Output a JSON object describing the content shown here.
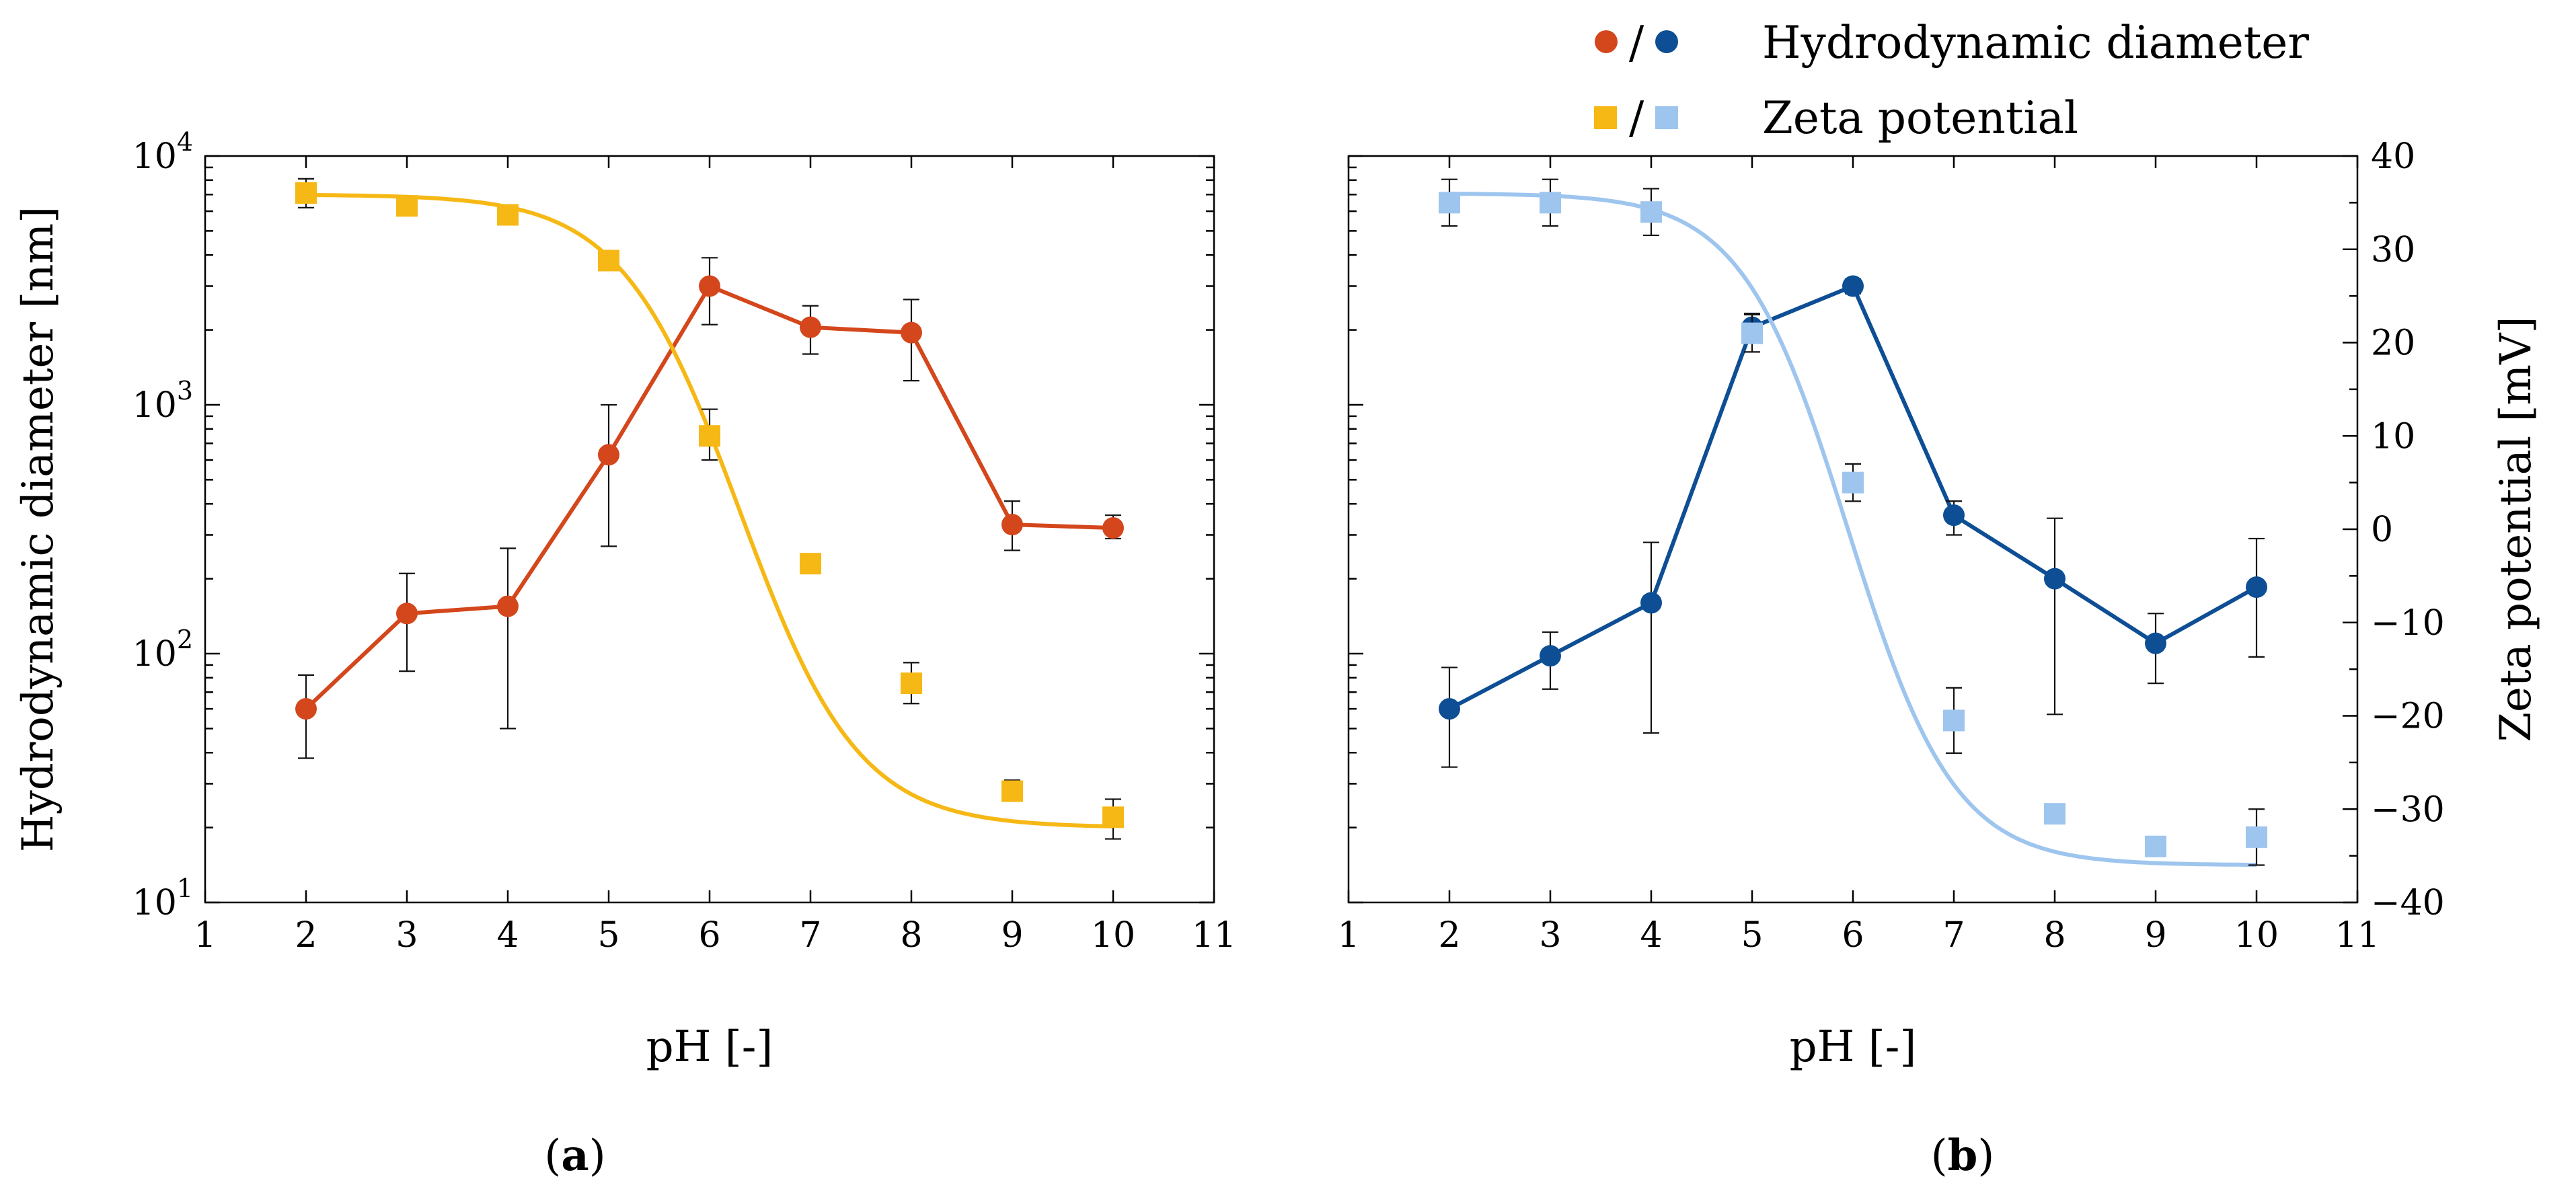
{
  "legend": {
    "separator": "/",
    "diameter_label": "Hydrodynamic diameter",
    "zeta_label": "Zeta potential"
  },
  "chart_data": [
    {
      "type": "line",
      "panel_label": "a",
      "title": "",
      "xlabel": "pH [-]",
      "ylabel": "Hydrodynamic diameter [nm]",
      "yscale": "log",
      "xlim": [
        1,
        11
      ],
      "ylim": [
        10,
        10000
      ],
      "x_ticks": [
        "1",
        "2",
        "3",
        "4",
        "5",
        "6",
        "7",
        "8",
        "9",
        "10",
        "11"
      ],
      "y_ticks": [
        {
          "base": "10",
          "exp": "1"
        },
        {
          "base": "10",
          "exp": "2"
        },
        {
          "base": "10",
          "exp": "3"
        },
        {
          "base": "10",
          "exp": "4"
        }
      ],
      "series": [
        {
          "name": "Hydrodynamic diameter",
          "kind": "diameter",
          "color": "#d4461b",
          "marker": "circle",
          "x": [
            2,
            3,
            4,
            5,
            6,
            7,
            8,
            9,
            10
          ],
          "y": [
            60,
            145,
            155,
            630,
            3000,
            2050,
            1950,
            330,
            320
          ],
          "err_low": [
            38,
            85,
            50,
            270,
            2100,
            1600,
            1250,
            260,
            290
          ],
          "err_high": [
            82,
            210,
            265,
            1000,
            3900,
            2500,
            2650,
            410,
            360
          ]
        },
        {
          "name": "Zeta potential",
          "kind": "zeta",
          "color": "#f6b815",
          "marker": "square",
          "x": [
            2,
            3,
            4,
            5,
            6,
            7,
            8,
            9,
            10
          ],
          "y": [
            7100,
            6300,
            5800,
            3800,
            750,
            230,
            76,
            28,
            22
          ],
          "err_low": [
            6200,
            5900,
            5300,
            3600,
            600,
            220,
            63,
            26,
            18
          ],
          "err_high": [
            8100,
            6900,
            6300,
            4100,
            960,
            250,
            92,
            31,
            26
          ],
          "fit_curve": {
            "top": 7000,
            "bottom": 20,
            "mid_ph": 6.3,
            "slope": 0.85
          }
        }
      ]
    },
    {
      "type": "line",
      "panel_label": "b",
      "title": "",
      "xlabel": "pH [-]",
      "ylabel": "Zeta potential [mV]",
      "yscale": "log",
      "xlim": [
        1,
        11
      ],
      "ylim": [
        10,
        10000
      ],
      "y2lim": [
        -40,
        40
      ],
      "x_ticks": [
        "1",
        "2",
        "3",
        "4",
        "5",
        "6",
        "7",
        "8",
        "9",
        "10",
        "11"
      ],
      "y2_ticks": [
        "40",
        "30",
        "20",
        "10",
        "0",
        "−10",
        "−20",
        "−30",
        "−40"
      ],
      "series": [
        {
          "name": "Hydrodynamic diameter",
          "kind": "diameter",
          "color": "#0d4e94",
          "marker": "circle",
          "x": [
            2,
            3,
            4,
            5,
            6,
            7,
            8,
            9,
            10
          ],
          "y": [
            60,
            98,
            160,
            2050,
            3000,
            360,
            200,
            110,
            185
          ],
          "err_low": [
            35,
            72,
            48,
            1800,
            2800,
            300,
            57,
            76,
            97
          ],
          "err_high": [
            88,
            122,
            280,
            2330,
            3200,
            410,
            350,
            145,
            290
          ]
        },
        {
          "name": "Zeta potential",
          "kind": "zeta",
          "color": "#9ec5ee",
          "marker": "square",
          "axis": "right",
          "x": [
            2,
            3,
            4,
            5,
            6,
            7,
            8,
            9,
            10
          ],
          "y": [
            35,
            35,
            34,
            21,
            5,
            -20.5,
            -30.5,
            -34,
            -33
          ],
          "err_low": [
            32.5,
            32.5,
            31.5,
            19,
            3,
            -24,
            -31,
            -35,
            -36
          ],
          "err_high": [
            37.5,
            37.5,
            36.5,
            23,
            7,
            -17,
            -30,
            -33,
            -30
          ],
          "fit_curve": {
            "top": 36,
            "bottom": -36,
            "mid_ph": 5.95,
            "slope": 0.95
          }
        }
      ]
    }
  ]
}
